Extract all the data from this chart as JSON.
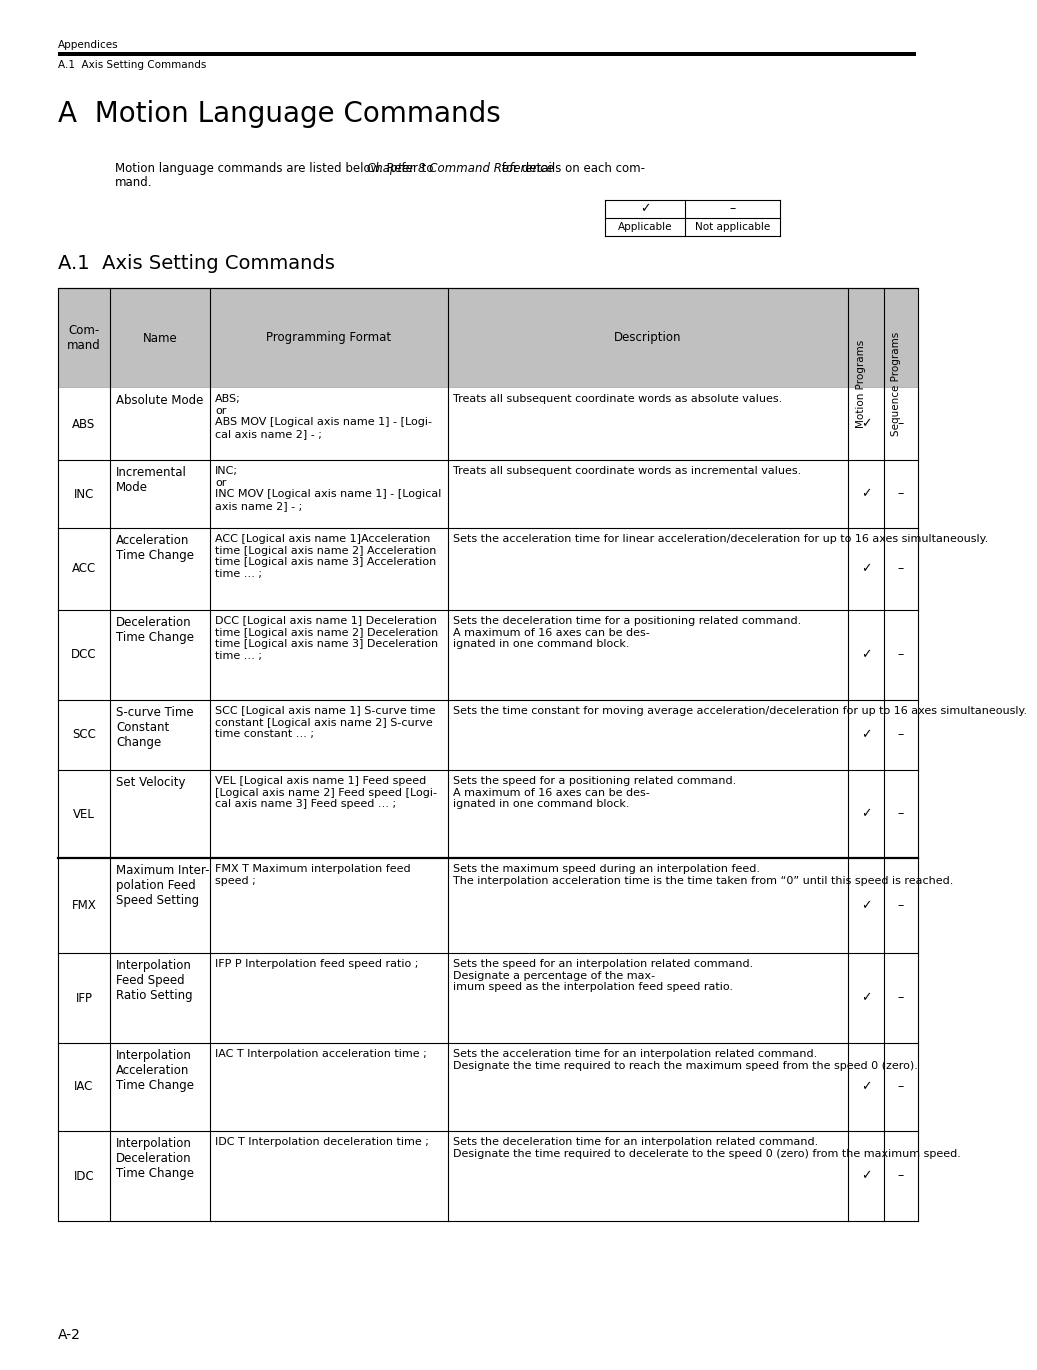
{
  "page_bg": "#ffffff",
  "header_text1": "Appendices",
  "header_text2": "A.1  Axis Setting Commands",
  "title": "A  Motion Language Commands",
  "legend_check": "✓",
  "legend_dash": "–",
  "legend_applicable": "Applicable",
  "legend_not_applicable": "Not applicable",
  "section_title": "A.1  Axis Setting Commands",
  "col_header_bg": "#c0c0c0",
  "footer_text": "A-2",
  "table_rows": [
    {
      "cmd": "ABS",
      "name": "Absolute Mode",
      "format": "ABS;\nor\nABS MOV [Logical axis name 1] - [Logi-\ncal axis name 2] - ;",
      "desc": "Treats all subsequent coordinate words as absolute values.",
      "motion": "✓",
      "seq": "–"
    },
    {
      "cmd": "INC",
      "name": "Incremental\nMode",
      "format": "INC;\nor\nINC MOV [Logical axis name 1] - [Logical\naxis name 2] - ;",
      "desc": "Treats all subsequent coordinate words as incremental values.",
      "motion": "✓",
      "seq": "–"
    },
    {
      "cmd": "ACC",
      "name": "Acceleration\nTime Change",
      "format": "ACC [Logical axis name 1]Acceleration\ntime [Logical axis name 2] Acceleration\ntime [Logical axis name 3] Acceleration\ntime … ;",
      "desc": "Sets the acceleration time for linear acceleration/deceleration for up to 16 axes simultaneously.",
      "motion": "✓",
      "seq": "–"
    },
    {
      "cmd": "DCC",
      "name": "Deceleration\nTime Change",
      "format": "DCC [Logical axis name 1] Deceleration\ntime [Logical axis name 2] Deceleration\ntime [Logical axis name 3] Deceleration\ntime … ;",
      "desc": "Sets the deceleration time for a positioning related command.\nA maximum of 16 axes can be des-\nignated in one command block.",
      "motion": "✓",
      "seq": "–"
    },
    {
      "cmd": "SCC",
      "name": "S-curve Time\nConstant\nChange",
      "format": "SCC [Logical axis name 1] S-curve time\nconstant [Logical axis name 2] S-curve\ntime constant … ;",
      "desc": "Sets the time constant for moving average acceleration/deceleration for up to 16 axes simultaneously.",
      "motion": "✓",
      "seq": "–"
    },
    {
      "cmd": "VEL",
      "name": "Set Velocity",
      "format": "VEL [Logical axis name 1] Feed speed\n[Logical axis name 2] Feed speed [Logi-\ncal axis name 3] Feed speed … ;",
      "desc": "Sets the speed for a positioning related command.\nA maximum of 16 axes can be des-\nignated in one command block.",
      "motion": "✓",
      "seq": "–"
    },
    {
      "cmd": "FMX",
      "name": "Maximum Inter-\npolation Feed\nSpeed Setting",
      "format": "FMX T Maximum interpolation feed\nspeed ;",
      "desc": "Sets the maximum speed during an interpolation feed.\nThe interpolation acceleration time is the time taken from “0” until this speed is reached.",
      "motion": "✓",
      "seq": "–"
    },
    {
      "cmd": "IFP",
      "name": "Interpolation\nFeed Speed\nRatio Setting",
      "format": "IFP P Interpolation feed speed ratio ;",
      "desc": "Sets the speed for an interpolation related command.\nDesignate a percentage of the max-\nimum speed as the interpolation feed speed ratio.",
      "motion": "✓",
      "seq": "–"
    },
    {
      "cmd": "IAC",
      "name": "Interpolation\nAcceleration\nTime Change",
      "format": "IAC T Interpolation acceleration time ;",
      "desc": "Sets the acceleration time for an interpolation related command.\nDesignate the time required to reach the maximum speed from the speed 0 (zero).",
      "motion": "✓",
      "seq": "–"
    },
    {
      "cmd": "IDC",
      "name": "Interpolation\nDeceleration\nTime Change",
      "format": "IDC T Interpolation deceleration time ;",
      "desc": "Sets the deceleration time for an interpolation related command.\nDesignate the time required to decelerate to the speed 0 (zero) from the maximum speed.",
      "motion": "✓",
      "seq": "–"
    }
  ]
}
